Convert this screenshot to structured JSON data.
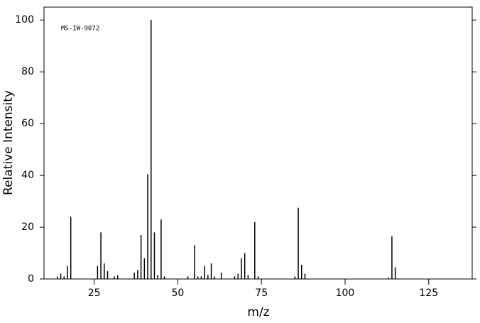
{
  "chart_data": {
    "type": "stem",
    "annotation": "MS-IW-9072",
    "xlabel": "m/z",
    "ylabel": "Relative Intensity",
    "x": [
      14,
      15,
      16,
      17,
      18,
      26,
      27,
      28,
      29,
      31,
      32,
      37,
      38,
      39,
      40,
      41,
      42,
      43,
      44,
      45,
      46,
      53,
      55,
      56,
      57,
      58,
      59,
      60,
      61,
      63,
      67,
      68,
      69,
      70,
      71,
      73,
      74,
      85,
      86,
      87,
      88,
      113,
      114,
      115
    ],
    "values": [
      1,
      2,
      1,
      5,
      24,
      5,
      18,
      6,
      3,
      1,
      1.5,
      2.5,
      3.5,
      17,
      8,
      40.5,
      100,
      18,
      1.5,
      23,
      1,
      1,
      13,
      1,
      1,
      5,
      1.5,
      6,
      1,
      2.5,
      1,
      2,
      8,
      10,
      1.5,
      22,
      1,
      1,
      27.5,
      5.5,
      2,
      0.5,
      16.5,
      4.5
    ],
    "color": "#000000",
    "xlim": [
      10,
      138
    ],
    "xticks": [
      25,
      50,
      75,
      100,
      125
    ],
    "ylim": [
      0,
      105
    ],
    "yticks": [
      0,
      20,
      40,
      60,
      80,
      100
    ],
    "grid": false
  }
}
